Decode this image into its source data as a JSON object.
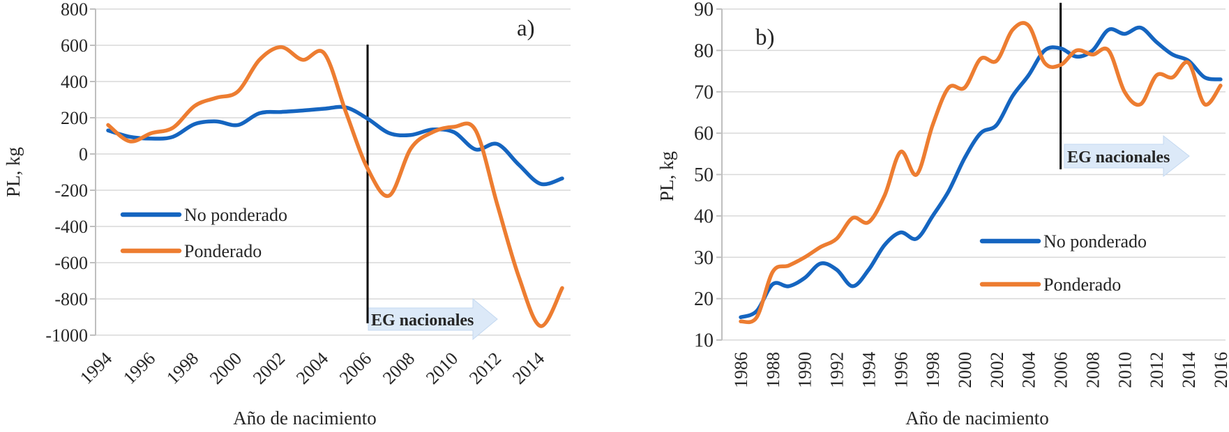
{
  "figure": {
    "panels": [
      "a)",
      "b)"
    ]
  },
  "colors": {
    "no_ponderado": "#1565C0",
    "ponderado": "#ED7D31",
    "gridline": "#D9D9D9",
    "axis_line": "#BFBFBF",
    "event_line": "#000000",
    "annotation_arrow_fill": "#DCE9F8",
    "annotation_arrow_border": "#C3D8F0",
    "text": "#262626"
  },
  "chart_data": [
    {
      "type": "line",
      "panel_label": "a)",
      "xlabel": "Año de nacimiento",
      "ylabel": "PL, kg",
      "grid": true,
      "legend_position": "inside-bottom-left",
      "x_start": 1994,
      "x_years": [
        1994,
        1995,
        1996,
        1997,
        1998,
        1999,
        2000,
        2001,
        2002,
        2003,
        2004,
        2005,
        2006,
        2007,
        2008,
        2009,
        2010,
        2011,
        2012,
        2013,
        2014,
        2015
      ],
      "xtick_labels": [
        "1994",
        "1996",
        "1998",
        "2000",
        "2002",
        "2004",
        "2006",
        "2008",
        "2010",
        "2012",
        "2014"
      ],
      "ylim": [
        -1000,
        800
      ],
      "yticks": [
        800,
        600,
        400,
        200,
        0,
        -200,
        -400,
        -600,
        -800,
        -1000
      ],
      "series": [
        {
          "name": "No ponderado",
          "color_key": "no_ponderado",
          "values": [
            130,
            95,
            85,
            95,
            165,
            180,
            160,
            225,
            232,
            240,
            250,
            257,
            195,
            115,
            105,
            135,
            120,
            25,
            55,
            -60,
            -165,
            -135
          ]
        },
        {
          "name": "Ponderado",
          "color_key": "ponderado",
          "values": [
            160,
            70,
            115,
            145,
            265,
            310,
            345,
            520,
            590,
            520,
            555,
            230,
            -80,
            -230,
            30,
            120,
            150,
            130,
            -280,
            -680,
            -950,
            -740
          ]
        }
      ],
      "event_line": {
        "x": 2006,
        "label": "EG nacionales"
      }
    },
    {
      "type": "line",
      "panel_label": "b)",
      "xlabel": "Año de nacimiento",
      "ylabel": "PL, kg",
      "grid": true,
      "legend_position": "inside-bottom-right",
      "x_start": 1986,
      "x_years": [
        1986,
        1987,
        1988,
        1989,
        1990,
        1991,
        1992,
        1993,
        1994,
        1995,
        1996,
        1997,
        1998,
        1999,
        2000,
        2001,
        2002,
        2003,
        2004,
        2005,
        2006,
        2007,
        2008,
        2009,
        2010,
        2011,
        2012,
        2013,
        2014,
        2015,
        2016
      ],
      "xtick_labels": [
        "1986",
        "1988",
        "1990",
        "1992",
        "1994",
        "1996",
        "1998",
        "2000",
        "2002",
        "2004",
        "2006",
        "2008",
        "2010",
        "2012",
        "2014",
        "2016"
      ],
      "ylim": [
        10,
        90
      ],
      "yticks": [
        90,
        80,
        70,
        60,
        50,
        40,
        30,
        20,
        10
      ],
      "series": [
        {
          "name": "No ponderado",
          "color_key": "no_ponderado",
          "values": [
            15.5,
            17,
            23.5,
            23,
            25,
            28.5,
            27,
            23,
            27,
            33,
            36,
            34.5,
            40,
            46,
            54,
            60,
            62,
            69,
            74,
            80,
            80.5,
            78.5,
            80,
            85,
            84,
            85.5,
            82,
            79,
            77.5,
            73.5,
            73
          ]
        },
        {
          "name": "Ponderado",
          "color_key": "ponderado",
          "values": [
            14.5,
            15.5,
            26.5,
            28,
            30,
            32.5,
            34.5,
            39.5,
            38.5,
            45,
            55.5,
            50,
            62,
            71,
            71,
            78,
            77.5,
            85,
            86,
            77,
            76.5,
            80,
            79,
            80,
            70,
            67,
            74,
            73.5,
            77,
            67,
            71.5
          ]
        }
      ],
      "event_line": {
        "x": 2006,
        "label": "EG nacionales"
      }
    }
  ]
}
